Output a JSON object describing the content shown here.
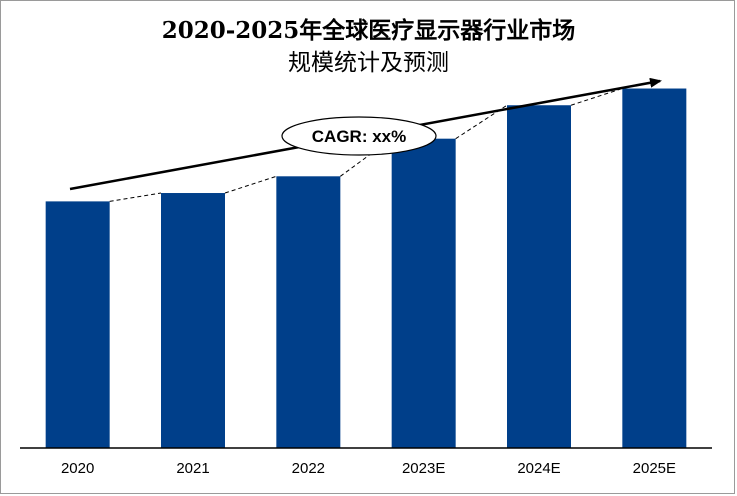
{
  "chart_data": {
    "type": "bar",
    "title_line1": "2020-2025年全球医疗显示器行业市场",
    "title_line2": "规模统计及预测",
    "categories": [
      "2020",
      "2021",
      "2022",
      "2023E",
      "2024E",
      "2025E"
    ],
    "values": [
      59,
      61,
      65,
      74,
      82,
      86
    ],
    "ylim": [
      0,
      100
    ],
    "annotation": "CAGR: xx%",
    "bar_color": "#003f8a",
    "trend_line": "dashed",
    "arrow": "upward-trend",
    "grid": false,
    "legend": "none"
  }
}
